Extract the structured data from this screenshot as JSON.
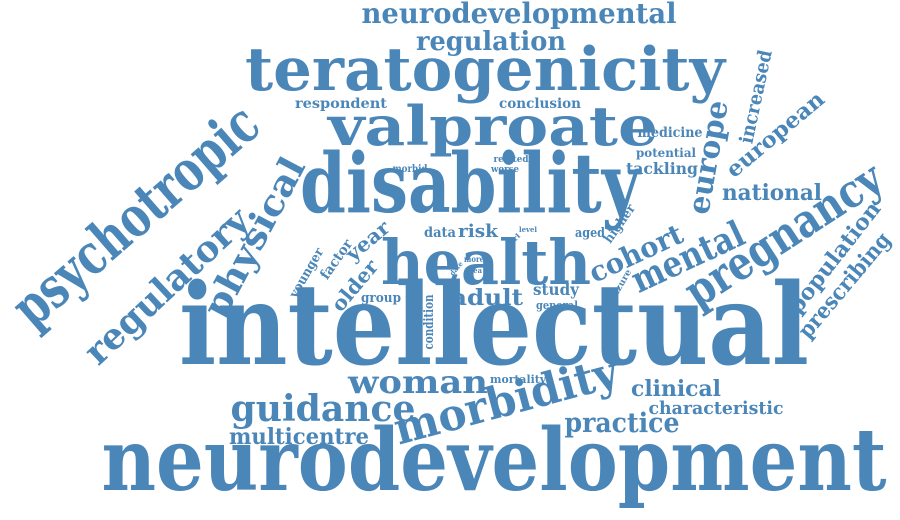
{
  "cloud": {
    "color": "#4a86b8",
    "words": [
      "intellectual",
      "neurodevelopment",
      "disability",
      "teratogenicity",
      "valproate",
      "health",
      "psychotropic",
      "pregnancy",
      "morbidity",
      "regulatory",
      "physical",
      "guidance",
      "woman",
      "neurodevelopmental",
      "mental",
      "europe",
      "cohort",
      "regulation",
      "practice",
      "multicentre",
      "prescribing",
      "population",
      "european",
      "increased",
      "national",
      "clinical",
      "characteristic",
      "adult",
      "older",
      "year",
      "risk",
      "data",
      "study",
      "tackling",
      "medicine",
      "potential",
      "respondent",
      "conclusion",
      "factor",
      "younger",
      "group",
      "condition",
      "higher",
      "aged",
      "general",
      "mortality",
      "seizure",
      "morbid",
      "related",
      "worse",
      "more",
      "idea",
      "date",
      "level",
      "girl"
    ]
  }
}
